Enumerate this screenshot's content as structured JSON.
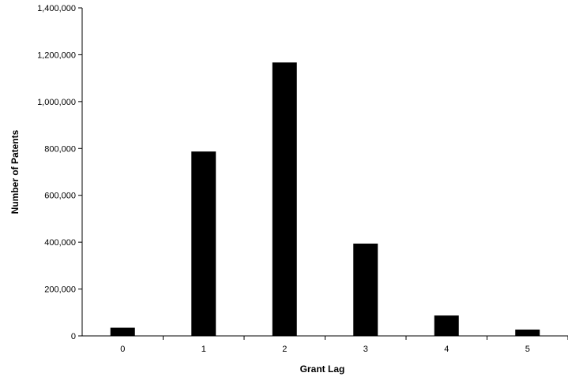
{
  "chart_data": {
    "type": "bar",
    "title": "",
    "xlabel": "Grant Lag",
    "ylabel": "Number of Patents",
    "categories": [
      "0",
      "1",
      "2",
      "3",
      "4",
      "5"
    ],
    "values": [
      35000,
      787000,
      1167000,
      394000,
      87000,
      27000
    ],
    "ylim": [
      0,
      1400000
    ],
    "yticks": [
      {
        "value": 0,
        "label": "0"
      },
      {
        "value": 200000,
        "label": "200,000"
      },
      {
        "value": 400000,
        "label": "400,000"
      },
      {
        "value": 600000,
        "label": "600,000"
      },
      {
        "value": 800000,
        "label": "800,000"
      },
      {
        "value": 1000000,
        "label": "1,000,000"
      },
      {
        "value": 1200000,
        "label": "1,200,000"
      },
      {
        "value": 1400000,
        "label": "1,400,000"
      }
    ],
    "bar_color": "#000000",
    "grid": false,
    "legend": "none"
  }
}
